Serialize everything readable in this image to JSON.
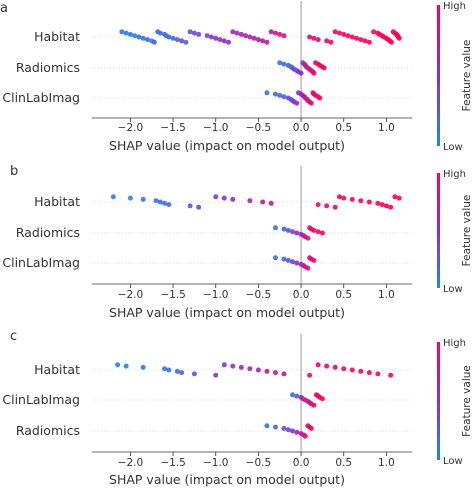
{
  "chart_data": [
    {
      "type": "scatter",
      "panel_label": "a",
      "xlabel": "SHAP value (impact on model output)",
      "xlim": [
        -2.45,
        1.3
      ],
      "xticks": [
        -2.0,
        -1.5,
        -1.0,
        -0.5,
        0.0,
        0.5,
        1.0
      ],
      "features": [
        "Habitat",
        "Radiomics",
        "ClinLabImag"
      ],
      "colorbar": {
        "high_label": "High",
        "low_label": "Low",
        "title": "Feature value"
      },
      "colors": {
        "low": "#1e88e5",
        "mid": "#8b2fc9",
        "high": "#ff0052"
      },
      "series": [
        {
          "name": "Habitat",
          "x": [
            -2.1,
            -2.05,
            -2.0,
            -1.95,
            -1.9,
            -1.85,
            -1.8,
            -1.75,
            -1.72,
            -1.68,
            -1.65,
            -1.6,
            -1.58,
            -1.55,
            -1.5,
            -1.45,
            -1.4,
            -1.35,
            -1.3,
            -1.25,
            -1.2,
            -1.1,
            -1.05,
            -1.0,
            -0.95,
            -0.9,
            -0.85,
            -0.8,
            -0.75,
            -0.7,
            -0.65,
            -0.6,
            -0.55,
            -0.5,
            -0.45,
            -0.4,
            -0.35,
            -0.3,
            -0.25,
            -0.2,
            0.1,
            0.15,
            0.2,
            0.3,
            0.35,
            0.4,
            0.45,
            0.5,
            0.55,
            0.6,
            0.65,
            0.7,
            0.75,
            0.8,
            0.85,
            0.9,
            0.92,
            0.95,
            0.97,
            1.0,
            1.02,
            1.04,
            1.06,
            1.08,
            1.1,
            1.12,
            1.13,
            1.14,
            1.15
          ],
          "value": [
            0.05,
            0.05,
            0.1,
            0.05,
            0.1,
            0.1,
            0.15,
            0.05,
            0.2,
            0.1,
            0.15,
            0.2,
            0.1,
            0.2,
            0.15,
            0.25,
            0.3,
            0.2,
            0.3,
            0.35,
            0.35,
            0.4,
            0.45,
            0.5,
            0.45,
            0.55,
            0.5,
            0.6,
            0.55,
            0.6,
            0.65,
            0.6,
            0.7,
            0.65,
            0.7,
            0.75,
            0.7,
            0.8,
            0.75,
            0.8,
            0.85,
            0.85,
            0.9,
            0.88,
            0.9,
            0.92,
            0.9,
            0.95,
            0.93,
            0.95,
            0.96,
            0.97,
            0.95,
            0.98,
            0.97,
            0.99,
            0.98,
            1.0,
            0.99,
            1.0,
            0.98,
            1.0,
            0.99,
            1.0,
            0.98,
            1.0,
            0.99,
            1.0,
            1.0
          ]
        },
        {
          "name": "Radiomics",
          "x": [
            -0.25,
            -0.2,
            -0.15,
            -0.12,
            -0.1,
            -0.08,
            -0.05,
            -0.03,
            0.0,
            0.02,
            0.04,
            0.05,
            0.06,
            0.08,
            0.1,
            0.12,
            0.14,
            0.15,
            0.17,
            0.2,
            0.22,
            0.25,
            0.27
          ],
          "value": [
            0.1,
            0.15,
            0.2,
            0.25,
            0.3,
            0.35,
            0.4,
            0.45,
            0.5,
            0.55,
            0.6,
            0.65,
            0.7,
            0.75,
            0.8,
            0.85,
            0.9,
            0.9,
            0.95,
            0.95,
            1.0,
            1.0,
            0.95
          ]
        },
        {
          "name": "ClinLabImag",
          "x": [
            -0.4,
            -0.3,
            -0.25,
            -0.2,
            -0.15,
            -0.12,
            -0.1,
            -0.08,
            -0.05,
            -0.03,
            0.0,
            0.02,
            0.04,
            0.05,
            0.07,
            0.08,
            0.1,
            0.12,
            0.14,
            0.15,
            0.17,
            0.2,
            0.22
          ],
          "value": [
            0.1,
            0.15,
            0.2,
            0.25,
            0.3,
            0.35,
            0.4,
            0.45,
            0.5,
            0.55,
            0.6,
            0.6,
            0.65,
            0.7,
            0.75,
            0.8,
            0.85,
            0.9,
            0.9,
            0.95,
            0.95,
            1.0,
            1.0
          ]
        }
      ]
    },
    {
      "type": "scatter",
      "panel_label": "b",
      "xlabel": "SHAP value (impact on model output)",
      "xlim": [
        -2.45,
        1.3
      ],
      "xticks": [
        -2.0,
        -1.5,
        -1.0,
        -0.5,
        0.0,
        0.5,
        1.0
      ],
      "features": [
        "Habitat",
        "Radiomics",
        "ClinLabImag"
      ],
      "colorbar": {
        "high_label": "High",
        "low_label": "Low",
        "title": "Feature value"
      },
      "series": [
        {
          "name": "Habitat",
          "x": [
            -2.2,
            -2.0,
            -1.85,
            -1.7,
            -1.65,
            -1.6,
            -1.55,
            -1.3,
            -1.2,
            -1.0,
            -0.9,
            -0.8,
            -0.6,
            -0.45,
            -0.35,
            0.2,
            0.3,
            0.4,
            0.45,
            0.5,
            0.6,
            0.7,
            0.8,
            0.9,
            0.95,
            1.0,
            1.05,
            1.1,
            1.15
          ],
          "value": [
            0.05,
            0.05,
            0.1,
            0.1,
            0.15,
            0.1,
            0.2,
            0.3,
            0.35,
            0.45,
            0.5,
            0.55,
            0.6,
            0.7,
            0.7,
            0.85,
            0.9,
            0.92,
            0.95,
            0.95,
            0.97,
            0.98,
            1.0,
            0.98,
            1.0,
            1.0,
            0.99,
            1.0,
            1.0
          ]
        },
        {
          "name": "Radiomics",
          "x": [
            -0.3,
            -0.2,
            -0.15,
            -0.1,
            -0.05,
            0.0,
            0.03,
            0.05,
            0.08,
            0.1,
            0.12,
            0.15,
            0.2,
            0.25
          ],
          "value": [
            0.1,
            0.2,
            0.3,
            0.4,
            0.5,
            0.6,
            0.7,
            0.75,
            0.8,
            0.85,
            0.9,
            0.95,
            0.95,
            1.0
          ]
        },
        {
          "name": "ClinLabImag",
          "x": [
            -0.3,
            -0.2,
            -0.15,
            -0.1,
            -0.05,
            0.0,
            0.03,
            0.05,
            0.08,
            0.1,
            0.12,
            0.15
          ],
          "value": [
            0.1,
            0.2,
            0.3,
            0.4,
            0.5,
            0.6,
            0.7,
            0.75,
            0.8,
            0.85,
            0.9,
            0.95
          ]
        }
      ]
    },
    {
      "type": "scatter",
      "panel_label": "c",
      "xlabel": "SHAP value (impact on model output)",
      "xlim": [
        -2.45,
        1.3
      ],
      "xticks": [
        -2.0,
        -1.5,
        -1.0,
        -0.5,
        0.0,
        0.5,
        1.0
      ],
      "features": [
        "Habitat",
        "ClinLabImag",
        "Radiomics"
      ],
      "colorbar": {
        "high_label": "High",
        "low_label": "Low",
        "title": "Feature value"
      },
      "series": [
        {
          "name": "Habitat",
          "x": [
            -2.15,
            -2.05,
            -1.85,
            -1.6,
            -1.55,
            -1.45,
            -1.4,
            -1.25,
            -1.0,
            -0.9,
            -0.8,
            -0.7,
            -0.6,
            -0.5,
            -0.4,
            -0.3,
            -0.2,
            0.1,
            0.2,
            0.3,
            0.4,
            0.5,
            0.6,
            0.7,
            0.8,
            0.9,
            1.05
          ],
          "value": [
            0.05,
            0.05,
            0.1,
            0.1,
            0.15,
            0.15,
            0.2,
            0.3,
            0.4,
            0.45,
            0.5,
            0.55,
            0.6,
            0.65,
            0.7,
            0.75,
            0.8,
            0.85,
            0.9,
            0.92,
            0.94,
            0.95,
            0.96,
            0.97,
            0.98,
            0.99,
            1.0
          ]
        },
        {
          "name": "ClinLabImag",
          "x": [
            -0.1,
            -0.05,
            0.0,
            0.02,
            0.05,
            0.08,
            0.1,
            0.12,
            0.15,
            0.18,
            0.2,
            0.22,
            0.25
          ],
          "value": [
            0.1,
            0.3,
            0.5,
            0.6,
            0.7,
            0.75,
            0.8,
            0.85,
            0.9,
            0.92,
            0.95,
            0.97,
            1.0
          ]
        },
        {
          "name": "Radiomics",
          "x": [
            -0.4,
            -0.3,
            -0.2,
            -0.15,
            -0.1,
            -0.05,
            0.0,
            0.03,
            0.05,
            0.08,
            0.1,
            0.12
          ],
          "value": [
            0.1,
            0.2,
            0.3,
            0.4,
            0.5,
            0.6,
            0.7,
            0.75,
            0.8,
            0.85,
            0.9,
            0.95
          ]
        }
      ]
    }
  ]
}
